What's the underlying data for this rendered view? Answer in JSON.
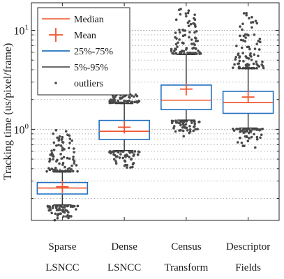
{
  "chart_data": {
    "type": "box",
    "title": "",
    "xlabel": "",
    "ylabel": "Tracking time (us/pixel/frame)",
    "yscale": "log",
    "ylim": [
      0.12,
      19
    ],
    "grid": "horizontal-minor-dotted",
    "legend_position": "top-left",
    "y_ticks": [
      {
        "value": 1,
        "label": "10^0",
        "base": "10",
        "exp": "0"
      },
      {
        "value": 10,
        "label": "10^1",
        "base": "10",
        "exp": "1"
      }
    ],
    "legend": [
      {
        "key": "median",
        "label": "Median"
      },
      {
        "key": "mean",
        "label": "Mean"
      },
      {
        "key": "box",
        "label": "25%-75%"
      },
      {
        "key": "whisker",
        "label": "5%-95%"
      },
      {
        "key": "outliers",
        "label": "outliers"
      }
    ],
    "categories": [
      {
        "line1": "Sparse",
        "line2": "LSNCC"
      },
      {
        "line1": "Dense",
        "line2": "LSNCC"
      },
      {
        "line1": "Census",
        "line2": "Transform"
      },
      {
        "line1": "Descriptor",
        "line2": "Fields"
      }
    ],
    "series": [
      {
        "q1": 0.222,
        "median": 0.255,
        "q3": 0.29,
        "mean": 0.262,
        "p5": 0.172,
        "p95": 0.37,
        "out_low": [
          0.12,
          0.168
        ],
        "out_high": [
          0.375,
          1.0
        ]
      },
      {
        "q1": 0.79,
        "median": 0.955,
        "q3": 1.23,
        "mean": 1.05,
        "p5": 0.61,
        "p95": 1.82,
        "out_low": [
          0.41,
          0.6
        ],
        "out_high": [
          1.85,
          3.0
        ]
      },
      {
        "q1": 1.58,
        "median": 1.97,
        "q3": 2.8,
        "mean": 2.55,
        "p5": 1.24,
        "p95": 5.7,
        "out_low": [
          0.8,
          1.22
        ],
        "out_high": [
          5.8,
          18.5
        ]
      },
      {
        "q1": 1.45,
        "median": 1.87,
        "q3": 2.42,
        "mean": 2.12,
        "p5": 1.03,
        "p95": 4.1,
        "out_low": [
          0.65,
          1.01
        ],
        "out_high": [
          4.15,
          15.0
        ]
      }
    ],
    "colors": {
      "median": "#f0522a",
      "mean": "#f0522a",
      "box": "#1f6fbf",
      "whisker": "#3a3a3a",
      "outliers": "#4a4a4a",
      "grid": "#b5b5b5",
      "axis": "#262626"
    }
  }
}
